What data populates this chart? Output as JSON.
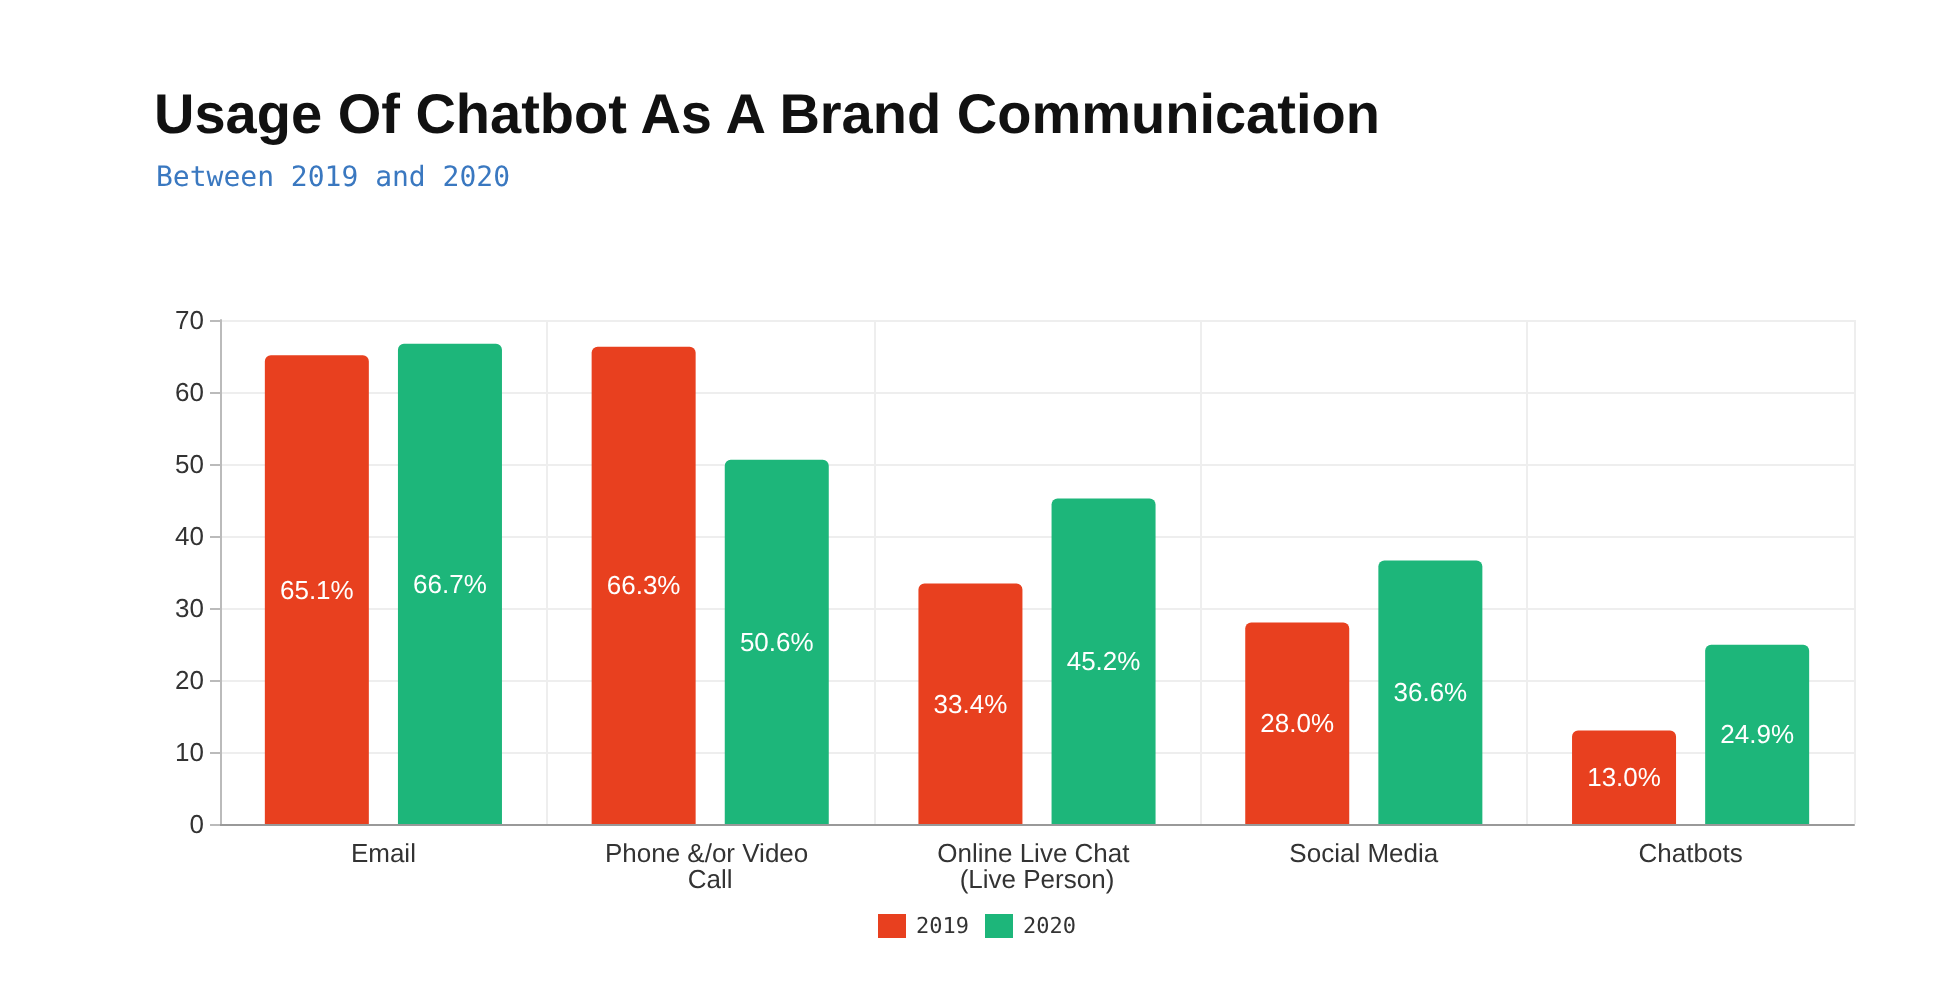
{
  "chart_data": {
    "type": "bar",
    "title": "Usage Of Chatbot As A Brand Communication",
    "subtitle": "Between 2019 and 2020",
    "categories": [
      "Email",
      "Phone &/or Video Call",
      "Online Live Chat (Live Person)",
      "Social Media",
      "Chatbots"
    ],
    "series": [
      {
        "name": "2019",
        "color": "#e8401f",
        "values": [
          65.1,
          66.3,
          33.4,
          28.0,
          13.0
        ],
        "value_labels": [
          "65.1%",
          "66.3%",
          "33.4%",
          "28.0%",
          "13.0%"
        ]
      },
      {
        "name": "2020",
        "color": "#1db67a",
        "values": [
          66.7,
          50.6,
          45.2,
          36.6,
          24.9
        ],
        "value_labels": [
          "66.7%",
          "50.6%",
          "45.2%",
          "36.6%",
          "24.9%"
        ]
      }
    ],
    "ylim": [
      0,
      70
    ],
    "yticks": [
      0,
      10,
      20,
      30,
      40,
      50,
      60,
      70
    ],
    "grid": true,
    "legend": "bottom"
  }
}
